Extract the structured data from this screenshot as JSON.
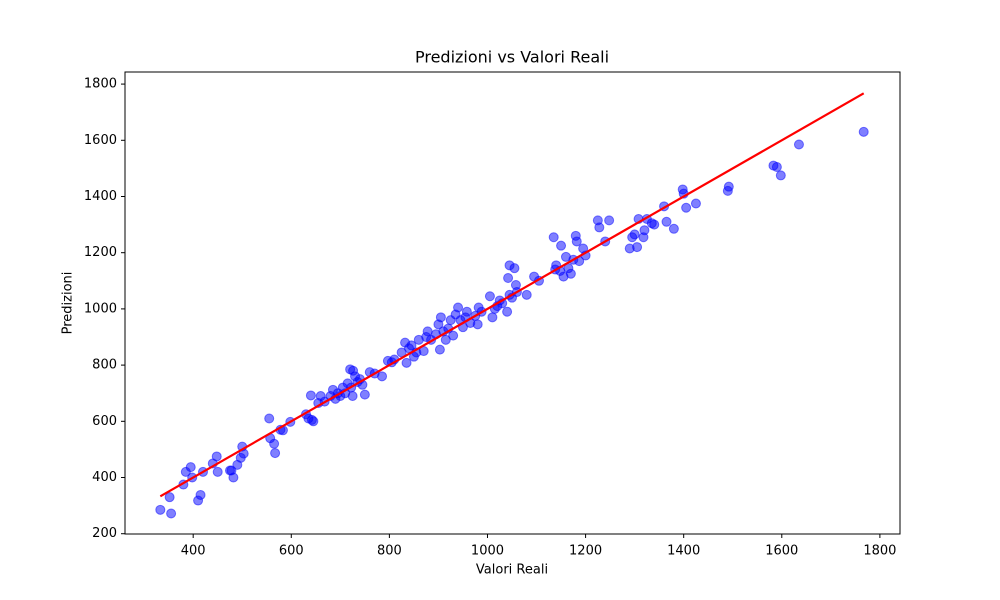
{
  "chart_data": {
    "type": "scatter",
    "title": "Predizioni vs Valori Reali",
    "x_label": "Valori Reali",
    "y_label": "Predizioni",
    "xlim": [
      261,
      1841
    ],
    "ylim": [
      199,
      1843
    ],
    "xticks": [
      400,
      600,
      800,
      1000,
      1200,
      1400,
      1600,
      1800
    ],
    "yticks": [
      200,
      400,
      600,
      800,
      1000,
      1200,
      1400,
      1600,
      1800
    ],
    "series": [
      {
        "color": "#0000ff",
        "x": [
          333,
          352,
          355,
          380,
          385,
          395,
          398,
          410,
          415,
          420,
          440,
          448,
          450,
          475,
          478,
          482,
          490,
          497,
          500,
          503,
          555,
          557,
          565,
          567,
          578,
          583,
          598,
          630,
          635,
          640,
          642,
          645,
          655,
          660,
          668,
          680,
          685,
          690,
          695,
          700,
          705,
          710,
          715,
          720,
          722,
          725,
          726,
          730,
          735,
          740,
          745,
          750,
          760,
          770,
          785,
          797,
          805,
          810,
          825,
          832,
          835,
          840,
          845,
          850,
          855,
          860,
          870,
          875,
          878,
          885,
          895,
          900,
          903,
          905,
          910,
          915,
          920,
          925,
          930,
          935,
          940,
          945,
          950,
          955,
          958,
          965,
          975,
          980,
          982,
          988,
          1005,
          1010,
          1015,
          1020,
          1025,
          1030,
          1040,
          1042,
          1045,
          1045,
          1050,
          1055,
          1058,
          1060,
          1080,
          1095,
          1105,
          1135,
          1138,
          1140,
          1148,
          1150,
          1155,
          1160,
          1165,
          1170,
          1175,
          1180,
          1182,
          1187,
          1195,
          1200,
          1225,
          1228,
          1240,
          1248,
          1290,
          1295,
          1300,
          1305,
          1308,
          1318,
          1320,
          1325,
          1335,
          1340,
          1360,
          1365,
          1380,
          1398,
          1400,
          1405,
          1425,
          1490,
          1492,
          1583,
          1590,
          1598,
          1635,
          1767
        ],
        "values": [
          285,
          330,
          272,
          375,
          420,
          437,
          400,
          318,
          338,
          420,
          450,
          475,
          420,
          425,
          425,
          400,
          445,
          470,
          510,
          485,
          610,
          540,
          520,
          487,
          570,
          568,
          598,
          625,
          610,
          692,
          605,
          600,
          665,
          690,
          670,
          690,
          712,
          680,
          700,
          690,
          720,
          700,
          735,
          785,
          720,
          690,
          780,
          760,
          740,
          750,
          730,
          695,
          775,
          770,
          760,
          815,
          810,
          820,
          845,
          880,
          808,
          860,
          870,
          830,
          845,
          890,
          850,
          900,
          920,
          890,
          910,
          945,
          855,
          970,
          920,
          890,
          930,
          960,
          905,
          980,
          1005,
          960,
          935,
          970,
          990,
          950,
          975,
          945,
          1005,
          990,
          1045,
          970,
          1000,
          1010,
          1030,
          1020,
          990,
          1110,
          1155,
          1050,
          1040,
          1145,
          1085,
          1060,
          1050,
          1115,
          1100,
          1255,
          1140,
          1155,
          1135,
          1225,
          1115,
          1185,
          1145,
          1125,
          1175,
          1260,
          1240,
          1170,
          1215,
          1190,
          1315,
          1290,
          1240,
          1315,
          1215,
          1255,
          1265,
          1220,
          1320,
          1255,
          1280,
          1320,
          1305,
          1300,
          1365,
          1310,
          1285,
          1425,
          1410,
          1360,
          1375,
          1420,
          1435,
          1510,
          1505,
          1475,
          1585,
          1630
        ]
      }
    ],
    "regression_line": {
      "x": [
        333,
        1767
      ],
      "values": [
        333,
        1767
      ],
      "color": "#ff0000"
    }
  }
}
